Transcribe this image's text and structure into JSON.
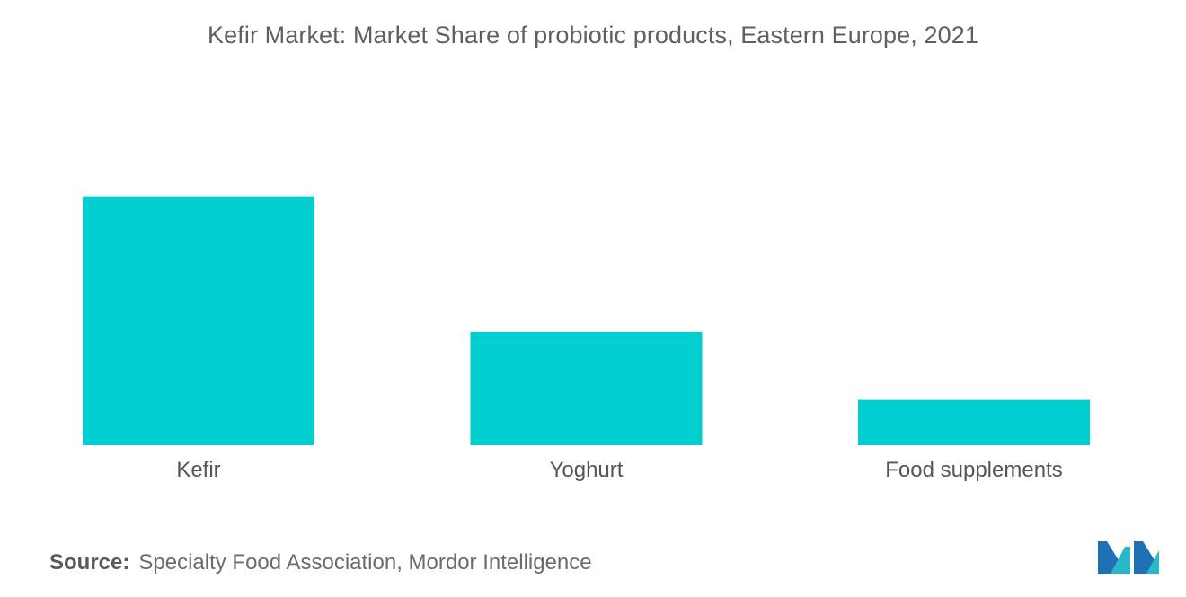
{
  "chart_data": {
    "type": "bar",
    "title": "Kefir Market: Market Share of probiotic products, Eastern Europe, 2021",
    "categories": [
      "Kefir",
      "Yoghurt",
      "Food supplements"
    ],
    "values": [
      55,
      25,
      10
    ],
    "ylim": [
      0,
      70
    ],
    "xlabel": "",
    "ylabel": "",
    "grid": false,
    "bar_color": "#00ced1"
  },
  "source": {
    "label": "Source:",
    "text": "Specialty Food Association, Mordor Intelligence"
  },
  "logo": {
    "icon": "mordor-intelligence-logo",
    "colors": [
      "#1f6fb5",
      "#2ab7c9"
    ]
  }
}
